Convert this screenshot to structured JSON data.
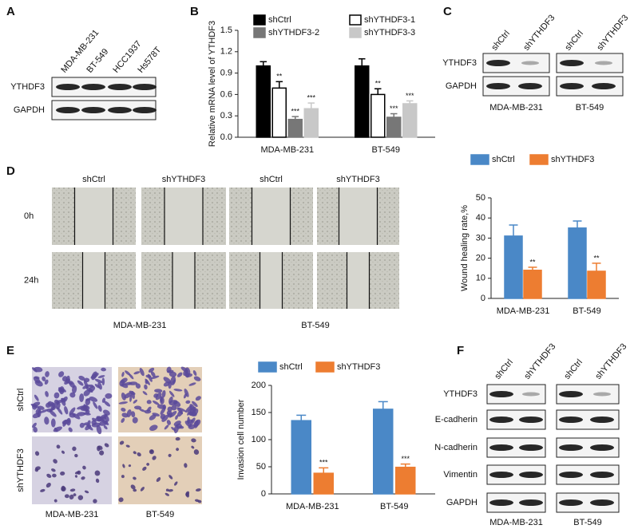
{
  "panel_labels": [
    "A",
    "B",
    "C",
    "D",
    "E",
    "F"
  ],
  "blot_a": {
    "columns": [
      "MDA-MB-231",
      "BT-549",
      "HCC1937",
      "Hs578T"
    ],
    "rows": [
      "YTHDF3",
      "GAPDH"
    ]
  },
  "blot_c": {
    "columns": [
      "shCtrl",
      "shYTHDF3",
      "shCtrl",
      "shYTHDF3"
    ],
    "rows": [
      "YTHDF3",
      "GAPDH"
    ],
    "groups": [
      "MDA-MB-231",
      "BT-549"
    ]
  },
  "wound_images": {
    "columns": [
      "shCtrl",
      "shYTHDF3",
      "shCtrl",
      "shYTHDF3"
    ],
    "rows": [
      "0h",
      "24h"
    ],
    "groups": [
      "MDA-MB-231",
      "BT-549"
    ]
  },
  "invasion_images": {
    "rows": [
      "shCtrl",
      "shYTHDF3"
    ],
    "columns": [
      "MDA-MB-231",
      "BT-549"
    ]
  },
  "blot_f": {
    "columns": [
      "shCtrl",
      "shYTHDF3",
      "shCtrl",
      "shYTHDF3"
    ],
    "rows": [
      "YTHDF3",
      "E-cadherin",
      "N-cadherin",
      "Vimentin",
      "GAPDH"
    ],
    "groups": [
      "MDA-MB-231",
      "BT-549"
    ]
  },
  "chart_data": [
    {
      "type": "bar",
      "ylabel": "Relative mRNA level of YTHDF3",
      "categories": [
        "MDA-MB-231",
        "BT-549"
      ],
      "series": [
        {
          "name": "shCtrl",
          "color": "#000000",
          "values": [
            1.0,
            1.0
          ],
          "errors": [
            0.06,
            0.1
          ],
          "significance": [
            null,
            null
          ]
        },
        {
          "name": "shYTHDF3-1",
          "color": "#ffffff",
          "values": [
            0.69,
            0.6
          ],
          "errors": [
            0.09,
            0.08
          ],
          "significance": [
            "**",
            "**"
          ]
        },
        {
          "name": "shYTHDF3-2",
          "color": "#777777",
          "values": [
            0.25,
            0.28
          ],
          "errors": [
            0.04,
            0.05
          ],
          "significance": [
            "***",
            "***"
          ]
        },
        {
          "name": "shYTHDF3-3",
          "color": "#c8c8c8",
          "values": [
            0.4,
            0.47
          ],
          "errors": [
            0.08,
            0.04
          ],
          "significance": [
            "***",
            "***"
          ]
        }
      ],
      "ylim": [
        0,
        1.5
      ],
      "yticks": [
        {
          "value": 0,
          "label": "0.0"
        },
        0.3,
        0.6,
        0.9,
        1.2,
        1.5
      ]
    },
    {
      "type": "bar",
      "ylabel": "Wound healing rate,%",
      "categories": [
        "MDA-MB-231",
        "BT-549"
      ],
      "series": [
        {
          "name": "shCtrl",
          "color": "#4a88c7",
          "values": [
            31,
            35
          ],
          "errors": [
            5.5,
            3.5
          ],
          "significance": [
            null,
            null
          ]
        },
        {
          "name": "shYTHDF3",
          "color": "#ed7d31",
          "values": [
            14,
            13.5
          ],
          "errors": [
            1.5,
            4
          ],
          "significance": [
            "**",
            "**"
          ]
        }
      ],
      "ylim": [
        0,
        50
      ],
      "yticks": [
        0,
        10,
        20,
        30,
        40,
        50
      ]
    },
    {
      "type": "bar",
      "ylabel": "Invasion cell number",
      "categories": [
        "MDA-MB-231",
        "BT-549"
      ],
      "series": [
        {
          "name": "shCtrl",
          "color": "#4a88c7",
          "values": [
            135,
            156
          ],
          "errors": [
            10,
            14
          ],
          "significance": [
            null,
            null
          ]
        },
        {
          "name": "shYTHDF3",
          "color": "#ed7d31",
          "values": [
            38,
            49
          ],
          "errors": [
            10,
            6
          ],
          "significance": [
            "***",
            "***"
          ]
        }
      ],
      "ylim": [
        0,
        200
      ],
      "yticks": [
        0,
        50,
        100,
        150,
        200
      ]
    }
  ]
}
